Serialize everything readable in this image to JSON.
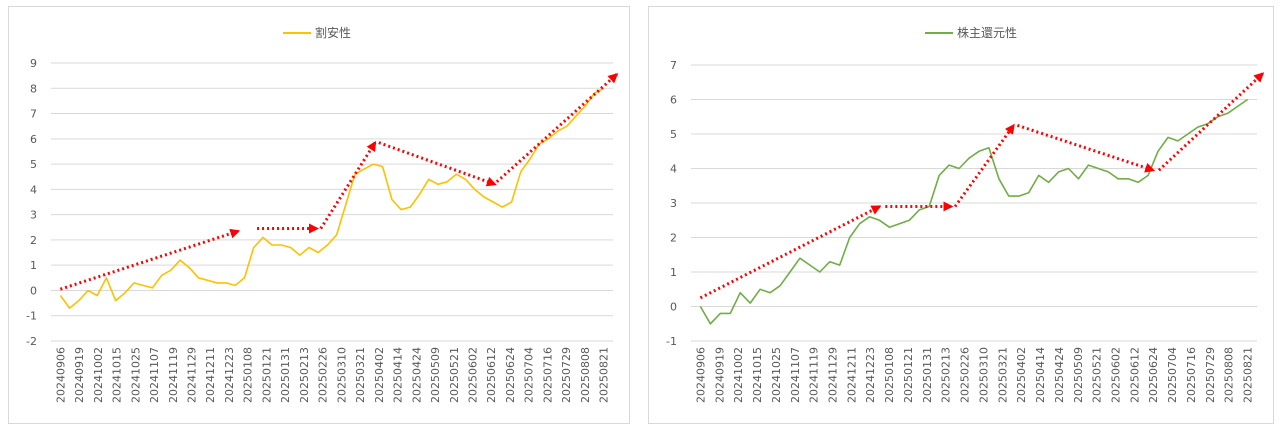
{
  "chart_data": [
    {
      "type": "line",
      "legend_position": "top",
      "grid": true,
      "ylim": [
        -2,
        9
      ],
      "y_ticks": [
        -2,
        -1,
        0,
        1,
        2,
        3,
        4,
        5,
        6,
        7,
        8,
        9
      ],
      "x_labels": [
        "20240906",
        "20240919",
        "20241002",
        "20241015",
        "20241025",
        "20241107",
        "20241119",
        "20241129",
        "20241211",
        "20241223",
        "20250108",
        "20250121",
        "20250131",
        "20250213",
        "20250226",
        "20250310",
        "20250321",
        "20250402",
        "20250414",
        "20250424",
        "20250509",
        "20250521",
        "20250602",
        "20250612",
        "20250624",
        "20250704",
        "20250716",
        "20250729",
        "20250808",
        "20250821"
      ],
      "series": [
        {
          "name": "割安性",
          "color": "#ffc000",
          "values": [
            -0.2,
            -0.7,
            -0.4,
            0.0,
            -0.2,
            0.5,
            -0.4,
            -0.1,
            0.3,
            0.2,
            0.1,
            0.6,
            0.8,
            1.2,
            0.9,
            0.5,
            0.4,
            0.3,
            0.3,
            0.2,
            0.5,
            1.7,
            2.1,
            1.8,
            1.8,
            1.7,
            1.4,
            1.7,
            1.5,
            1.8,
            2.2,
            3.4,
            4.6,
            4.8,
            5.0,
            4.9,
            3.6,
            3.2,
            3.3,
            3.8,
            4.4,
            4.2,
            4.3,
            4.6,
            4.4,
            4.0,
            3.7,
            3.5,
            3.3,
            3.5,
            4.7,
            5.2,
            5.8,
            6.0,
            6.3,
            6.5,
            6.9,
            7.3,
            7.8,
            8.0
          ]
        }
      ],
      "trend_arrows": [
        {
          "from": [
            0,
            0.05
          ],
          "to": [
            9.5,
            2.35
          ]
        },
        {
          "from": [
            10.5,
            2.45
          ],
          "to": [
            13.7,
            2.45
          ]
        },
        {
          "from": [
            13.9,
            2.45
          ],
          "to": [
            16.8,
            5.85
          ]
        },
        {
          "from": [
            17.0,
            5.85
          ],
          "to": [
            23.2,
            4.2
          ]
        },
        {
          "from": [
            23.3,
            4.3
          ],
          "to": [
            29.7,
            8.55
          ]
        }
      ]
    },
    {
      "type": "line",
      "legend_position": "top",
      "grid": true,
      "ylim": [
        -1,
        7
      ],
      "y_ticks": [
        -1,
        0,
        1,
        2,
        3,
        4,
        5,
        6,
        7
      ],
      "x_labels": [
        "20240906",
        "20240919",
        "20241002",
        "20241015",
        "20241025",
        "20241107",
        "20241119",
        "20241129",
        "20241211",
        "20241223",
        "20250108",
        "20250121",
        "20250131",
        "20250213",
        "20250226",
        "20250310",
        "20250321",
        "20250402",
        "20250414",
        "20250424",
        "20250509",
        "20250521",
        "20250602",
        "20250612",
        "20250624",
        "20250704",
        "20250716",
        "20250729",
        "20250808",
        "20250821"
      ],
      "series": [
        {
          "name": "株主還元性",
          "color": "#70ad47",
          "values": [
            0.0,
            -0.5,
            -0.2,
            -0.2,
            0.4,
            0.1,
            0.5,
            0.4,
            0.6,
            1.0,
            1.4,
            1.2,
            1.0,
            1.3,
            1.2,
            2.0,
            2.4,
            2.6,
            2.5,
            2.3,
            2.4,
            2.5,
            2.8,
            2.9,
            3.8,
            4.1,
            4.0,
            4.3,
            4.5,
            4.6,
            3.7,
            3.2,
            3.2,
            3.3,
            3.8,
            3.6,
            3.9,
            4.0,
            3.7,
            4.1,
            4.0,
            3.9,
            3.7,
            3.7,
            3.6,
            3.8,
            4.5,
            4.9,
            4.8,
            5.0,
            5.2,
            5.3,
            5.5,
            5.6,
            5.8,
            6.0
          ]
        }
      ],
      "trend_arrows": [
        {
          "from": [
            0,
            0.25
          ],
          "to": [
            9.5,
            2.9
          ]
        },
        {
          "from": [
            9.8,
            2.9
          ],
          "to": [
            13.3,
            2.9
          ]
        },
        {
          "from": [
            13.5,
            2.9
          ],
          "to": [
            16.6,
            5.25
          ]
        },
        {
          "from": [
            16.8,
            5.25
          ],
          "to": [
            24.0,
            3.95
          ]
        },
        {
          "from": [
            24.3,
            3.95
          ],
          "to": [
            29.8,
            6.75
          ]
        }
      ]
    }
  ]
}
